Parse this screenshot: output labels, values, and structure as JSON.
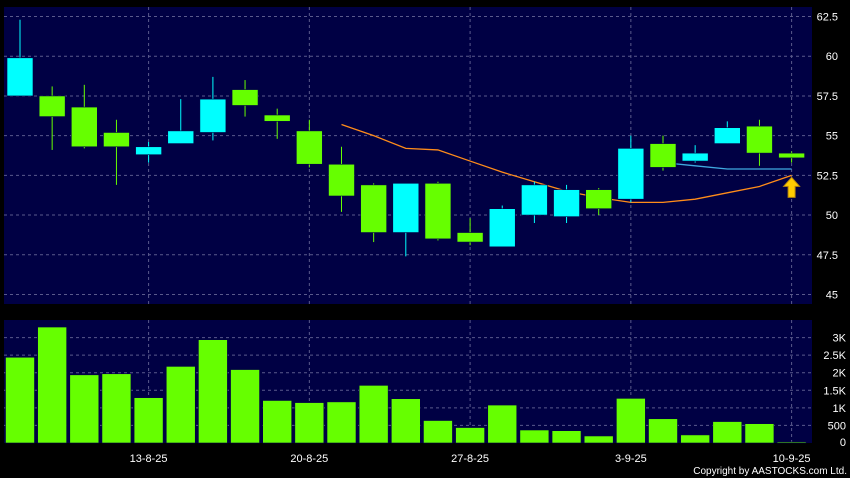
{
  "chart_data": [
    {
      "type": "candlestick",
      "panel": "price",
      "x_tick_labels": [
        "13-8-25",
        "20-8-25",
        "27-8-25",
        "3-9-25",
        "10-9-25"
      ],
      "y_ticks": [
        45,
        47.5,
        50,
        52.5,
        55,
        57.5,
        60,
        62.5
      ],
      "y_tick_labels": [
        "45",
        "47.5",
        "50",
        "52.5",
        "55",
        "57.5",
        "60",
        "62.5"
      ],
      "ylim": [
        44.4,
        63.1
      ],
      "grid": true,
      "colors": {
        "background": "#000044",
        "up": "#00ffff",
        "down": "#66ff00",
        "ma_orange": "#ff8c1a",
        "ma_blue": "#3fa9e0",
        "grid": "#5a5a8c",
        "arrow": "#ffcc00"
      },
      "candles": [
        {
          "o": 57.5,
          "h": 62.3,
          "l": 57.5,
          "c": 59.9
        },
        {
          "o": 57.5,
          "h": 58.1,
          "l": 54.1,
          "c": 56.2
        },
        {
          "o": 56.8,
          "h": 58.2,
          "l": 54.2,
          "c": 54.3
        },
        {
          "o": 55.2,
          "h": 56.0,
          "l": 51.9,
          "c": 54.3
        },
        {
          "o": 53.8,
          "h": 54.6,
          "l": 53.3,
          "c": 54.3
        },
        {
          "o": 54.5,
          "h": 57.3,
          "l": 54.5,
          "c": 55.3
        },
        {
          "o": 55.2,
          "h": 58.7,
          "l": 54.7,
          "c": 57.3
        },
        {
          "o": 57.9,
          "h": 58.5,
          "l": 56.2,
          "c": 56.9
        },
        {
          "o": 56.3,
          "h": 56.7,
          "l": 54.8,
          "c": 55.9
        },
        {
          "o": 55.3,
          "h": 56.0,
          "l": 53.0,
          "c": 53.2
        },
        {
          "o": 53.2,
          "h": 54.3,
          "l": 50.2,
          "c": 51.2
        },
        {
          "o": 51.9,
          "h": 52.0,
          "l": 48.3,
          "c": 48.9
        },
        {
          "o": 48.9,
          "h": 52.0,
          "l": 47.4,
          "c": 52.0
        },
        {
          "o": 52.0,
          "h": 52.1,
          "l": 48.4,
          "c": 48.5
        },
        {
          "o": 48.9,
          "h": 49.8,
          "l": 48.1,
          "c": 48.3
        },
        {
          "o": 48.0,
          "h": 50.6,
          "l": 48.0,
          "c": 50.4
        },
        {
          "o": 50.0,
          "h": 52.1,
          "l": 49.5,
          "c": 51.9
        },
        {
          "o": 49.9,
          "h": 51.9,
          "l": 49.5,
          "c": 51.6
        },
        {
          "o": 51.6,
          "h": 51.7,
          "l": 50.0,
          "c": 50.4
        },
        {
          "o": 51.0,
          "h": 55.0,
          "l": 50.8,
          "c": 54.2
        },
        {
          "o": 54.5,
          "h": 55.0,
          "l": 52.8,
          "c": 53.0
        },
        {
          "o": 53.4,
          "h": 54.4,
          "l": 53.3,
          "c": 53.9
        },
        {
          "o": 54.5,
          "h": 55.9,
          "l": 54.5,
          "c": 55.5
        },
        {
          "o": 55.6,
          "h": 56.0,
          "l": 53.1,
          "c": 53.9
        },
        {
          "o": 53.9,
          "h": 54.0,
          "l": 53.3,
          "c": 53.6
        }
      ],
      "ma_orange": [
        null,
        null,
        null,
        null,
        null,
        null,
        null,
        null,
        null,
        null,
        55.7,
        55.0,
        54.2,
        54.1,
        53.4,
        52.7,
        52.1,
        51.5,
        51.1,
        50.8,
        50.8,
        51.0,
        51.4,
        51.8,
        52.5
      ],
      "ma_blue": [
        null,
        null,
        null,
        null,
        null,
        null,
        null,
        null,
        null,
        null,
        null,
        null,
        null,
        null,
        null,
        null,
        null,
        null,
        null,
        null,
        53.3,
        53.1,
        52.9,
        52.9,
        52.9
      ],
      "arrow_at_index": 24
    },
    {
      "type": "bar",
      "panel": "volume",
      "y_ticks": [
        0,
        500,
        1000,
        1500,
        2000,
        2500,
        3000
      ],
      "y_tick_labels": [
        "0",
        "500",
        "1K",
        "1.5K",
        "2K",
        "2.5K",
        "3K"
      ],
      "ylim": [
        0,
        3500
      ],
      "grid": true,
      "colors": {
        "background": "#000044",
        "bar": "#66ff00",
        "grid": "#5a5a8c"
      },
      "values": [
        2440,
        3300,
        1940,
        1970,
        1290,
        2180,
        2940,
        2090,
        1210,
        1150,
        1170,
        1640,
        1260,
        640,
        440,
        1080,
        370,
        350,
        200,
        1270,
        690,
        230,
        610,
        550,
        30
      ]
    }
  ],
  "footer": {
    "copyright": "Copyright by AASTOCKS.com Ltd."
  }
}
